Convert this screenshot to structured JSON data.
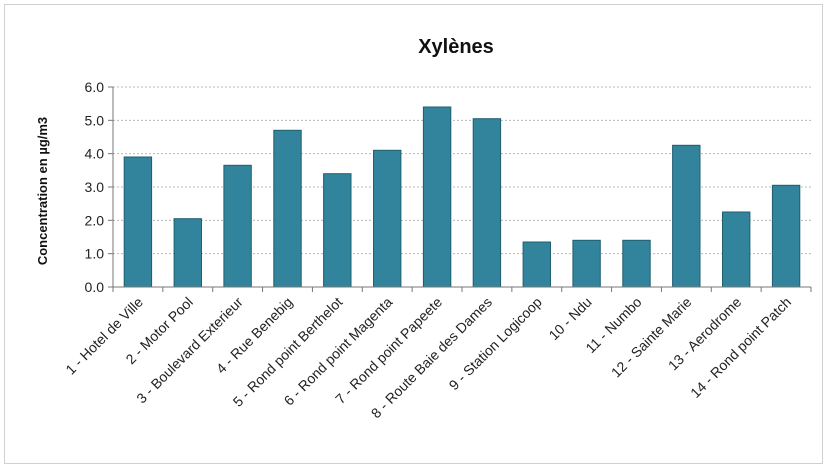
{
  "chart_data": {
    "type": "bar",
    "title": "Xylènes",
    "xlabel": "",
    "ylabel": "Concentration  en µg/m3",
    "ylim": [
      0,
      6
    ],
    "yticks": [
      "0.0",
      "1.0",
      "2.0",
      "3.0",
      "4.0",
      "5.0",
      "6.0"
    ],
    "grid": true,
    "legend": "none",
    "bar_color": "#31849B",
    "categories": [
      "1 - Hotel de Ville",
      "2 - Motor Pool",
      "3 - Boulevard Exterieur",
      "4 - Rue Benebig",
      "5 - Rond point Berthelot",
      "6 - Rond point Magenta",
      "7 - Rond point Papeete",
      "8 - Route Baie des Dames",
      "9 - Station Logicoop",
      "10 - Ndu",
      "11 - Numbo",
      "12 - Sainte Marie",
      "13 - Aerodrome",
      "14 - Rond point Patch"
    ],
    "values": [
      3.9,
      2.05,
      3.65,
      4.7,
      3.4,
      4.1,
      5.4,
      5.05,
      1.35,
      1.4,
      1.4,
      4.25,
      2.25,
      3.05
    ]
  }
}
